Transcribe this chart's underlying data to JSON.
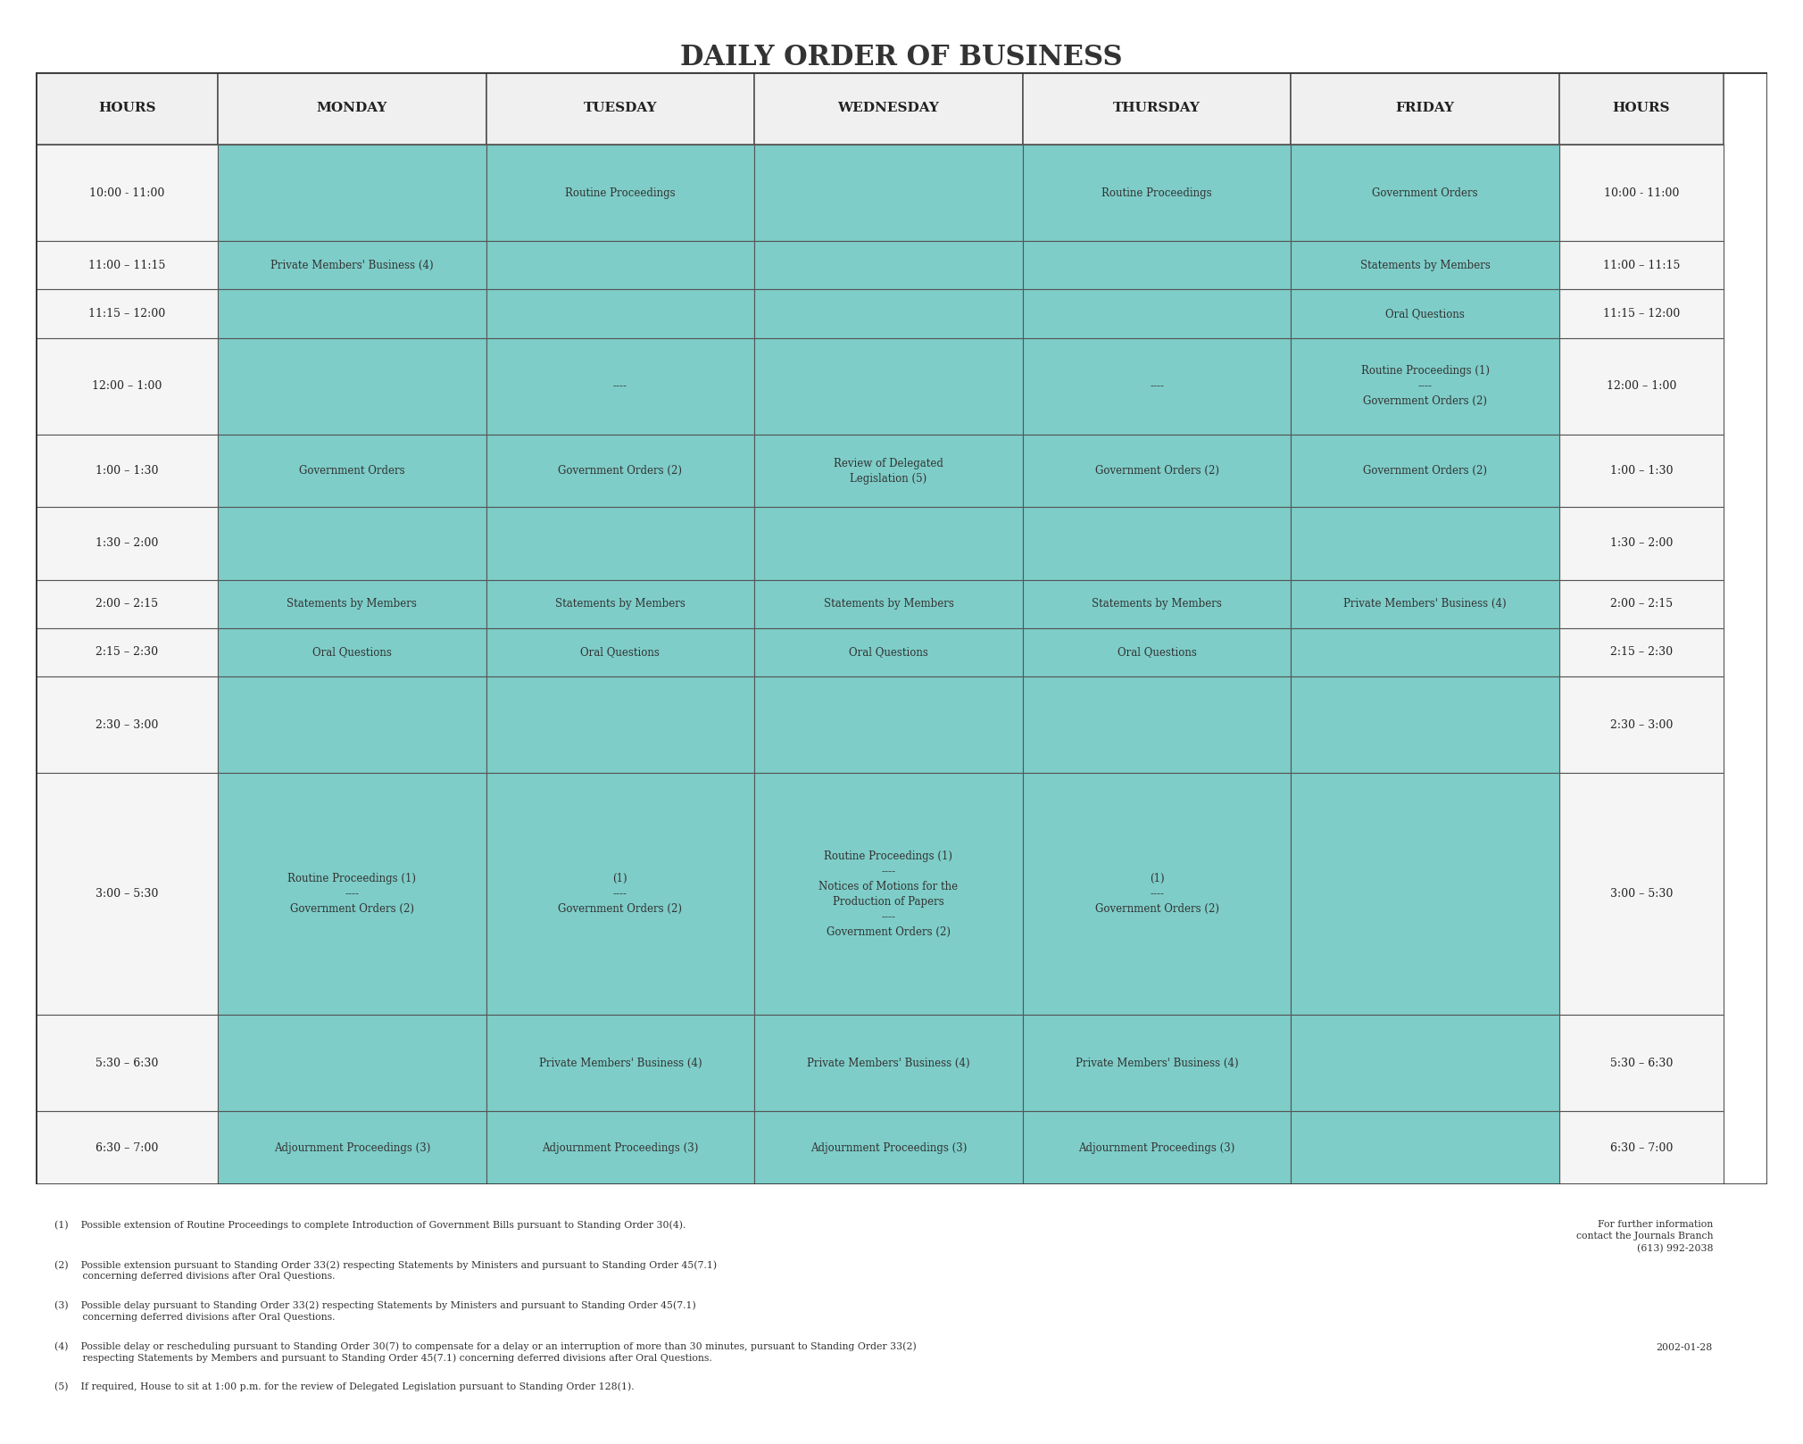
{
  "title": "DAILY ORDER OF BUSINESS",
  "background_color": "#ffffff",
  "cell_bg_color": "#7ecdc8",
  "header_bg_color": "#ffffff",
  "hours_col_bg": "#ffffff",
  "border_color": "#555555",
  "text_color": "#333333",
  "columns": [
    "HOURS",
    "MONDAY",
    "TUESDAY",
    "WEDNESDAY",
    "THURSDAY",
    "FRIDAY",
    "HOURS"
  ],
  "time_slots": [
    "10:00 - 11:00",
    "11:00 – 11:15",
    "11:15 – 12:00",
    "12:00 – 1:00",
    "1:00 – 1:30",
    "1:30 – 2:00",
    "2:00 – 2:15",
    "2:15 – 2:30",
    "2:30 – 3:00",
    "3:00 – 5:30",
    "5:30 – 6:30",
    "6:30 – 7:00"
  ],
  "row_heights": [
    1.0,
    0.5,
    0.5,
    1.0,
    0.75,
    0.75,
    0.5,
    0.5,
    1.0,
    2.5,
    1.0,
    0.75
  ],
  "cells": {
    "monday": {
      "10:00 - 11:00": "",
      "11:00 – 11:15": "Private Members' Business (4)",
      "11:15 – 12:00": "",
      "12:00 – 1:00": "",
      "1:00 – 1:30": "Government Orders",
      "1:30 – 2:00": "",
      "2:00 – 2:15": "Statements by Members",
      "2:15 – 2:30": "Oral Questions",
      "2:30 – 3:00": "",
      "3:00 – 5:30": "Routine Proceedings (1)\n----\nGovernment Orders (2)",
      "5:30 – 6:30": "",
      "6:30 – 7:00": "Adjournment Proceedings (3)"
    },
    "tuesday": {
      "10:00 - 11:00": "Routine Proceedings",
      "11:00 – 11:15": "",
      "11:15 – 12:00": "",
      "12:00 – 1:00": "----",
      "1:00 – 1:30": "Government Orders (2)",
      "1:30 – 2:00": "",
      "2:00 – 2:15": "Statements by Members",
      "2:15 – 2:30": "Oral Questions",
      "2:30 – 3:00": "",
      "3:00 – 5:30": "(1)\n----\nGovernment Orders (2)",
      "5:30 – 6:30": "Private Members' Business (4)",
      "6:30 – 7:00": "Adjournment Proceedings (3)"
    },
    "wednesday": {
      "10:00 - 11:00": "",
      "11:00 – 11:15": "",
      "11:15 – 12:00": "",
      "12:00 – 1:00": "",
      "1:00 – 1:30": "Review of Delegated\nLegislation (5)",
      "1:30 – 2:00": "",
      "2:00 – 2:15": "Statements by Members",
      "2:15 – 2:30": "Oral Questions",
      "2:30 – 3:00": "",
      "3:00 – 5:30": "Routine Proceedings (1)\n----\nNotices of Motions for the\nProduction of Papers\n----\nGovernment Orders (2)",
      "5:30 – 6:30": "Private Members' Business (4)",
      "6:30 – 7:00": "Adjournment Proceedings (3)"
    },
    "thursday": {
      "10:00 - 11:00": "Routine Proceedings",
      "11:00 – 11:15": "",
      "11:15 – 12:00": "",
      "12:00 – 1:00": "----",
      "1:00 – 1:30": "Government Orders (2)",
      "1:30 – 2:00": "",
      "2:00 – 2:15": "Statements by Members",
      "2:15 – 2:30": "Oral Questions",
      "2:30 – 3:00": "",
      "3:00 – 5:30": "(1)\n----\nGovernment Orders (2)",
      "5:30 – 6:30": "Private Members' Business (4)",
      "6:30 – 7:00": "Adjournment Proceedings (3)"
    },
    "friday": {
      "10:00 - 11:00": "Government Orders",
      "11:00 – 11:15": "Statements by Members",
      "11:15 – 12:00": "Oral Questions",
      "12:00 – 1:00": "Routine Proceedings (1)\n----\nGovernment Orders (2)",
      "1:00 – 1:30": "Government Orders (2)",
      "1:30 – 2:00": "",
      "2:00 – 2:15": "Private Members' Business (4)",
      "2:15 – 2:30": "",
      "2:30 – 3:00": "",
      "3:00 – 5:30": "",
      "5:30 – 6:30": "",
      "6:30 – 7:00": ""
    }
  },
  "footnotes": [
    "(1)    Possible extension of Routine Proceedings to complete Introduction of Government Bills pursuant to Standing Order 30(4).",
    "(2)    Possible extension pursuant to Standing Order 33(2) respecting Statements by Ministers and pursuant to Standing Order 45(7.1)\n         concerning deferred divisions after Oral Questions.",
    "(3)    Possible delay pursuant to Standing Order 33(2) respecting Statements by Ministers and pursuant to Standing Order 45(7.1)\n         concerning deferred divisions after Oral Questions.",
    "(4)    Possible delay or rescheduling pursuant to Standing Order 30(7) to compensate for a delay or an interruption of more than 30 minutes, pursuant to Standing Order 33(2)\n         respecting Statements by Members and pursuant to Standing Order 45(7.1) concerning deferred divisions after Oral Questions.",
    "(5)    If required, House to sit at 1:00 p.m. for the review of Delegated Legislation pursuant to Standing Order 128(1)."
  ],
  "contact_info": "For further information\ncontact the Journals Branch\n(613) 992-2038",
  "date": "2002-01-28"
}
